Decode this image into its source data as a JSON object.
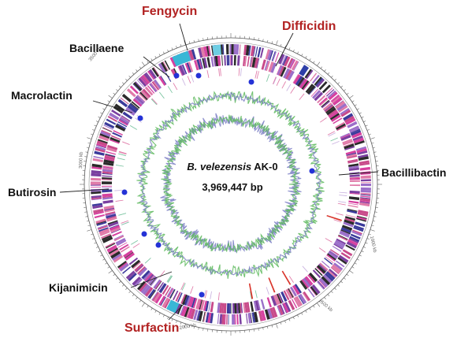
{
  "genome": {
    "species": "B. velezensis",
    "strain": "AK-0",
    "size": "3,969,447 bp"
  },
  "scale_ticks": [
    "3500 kb",
    "3000 kb",
    "1000 kb",
    "1500 kb",
    "2000 kb"
  ],
  "clusters": [
    {
      "id": "fengycin",
      "label": "Fengycin",
      "emphasis": "red"
    },
    {
      "id": "difficidin",
      "label": "Difficidin",
      "emphasis": "red"
    },
    {
      "id": "bacillaene",
      "label": "Bacillaene",
      "emphasis": "black"
    },
    {
      "id": "macrolactin",
      "label": "Macrolactin",
      "emphasis": "black"
    },
    {
      "id": "bacillibactin",
      "label": "Bacillibactin",
      "emphasis": "black"
    },
    {
      "id": "butirosin",
      "label": "Butirosin",
      "emphasis": "black"
    },
    {
      "id": "kijanimicin",
      "label": "Kijanimicin",
      "emphasis": "black"
    },
    {
      "id": "surfactin",
      "label": "Surfactin",
      "emphasis": "red"
    }
  ],
  "colors": {
    "emphasis_red": "#b22222",
    "cluster_dot": "#2432d6",
    "gc_skew": "#5cb85c",
    "gc_content": "#7b7fc4",
    "feature_palette": [
      "#d6409f",
      "#7a3fa0",
      "#3a3a9a",
      "#e07aa8",
      "#9b6fc9",
      "#2a2a2a",
      "#c84a8a"
    ]
  }
}
